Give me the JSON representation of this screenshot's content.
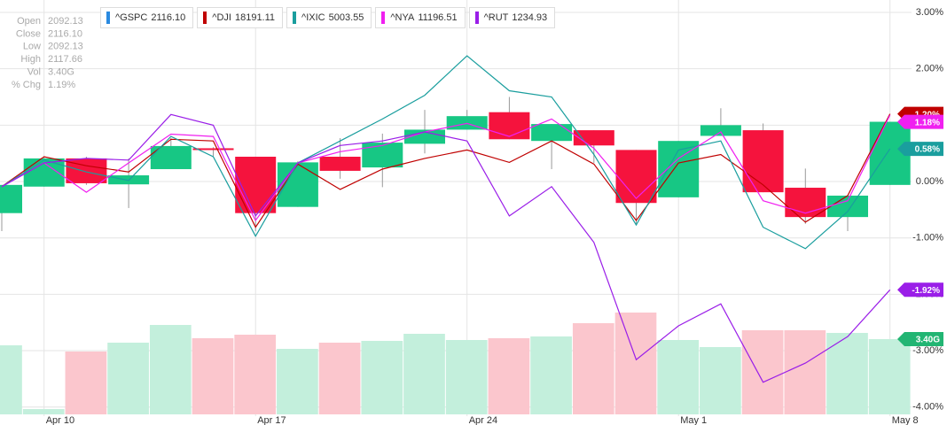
{
  "chart_data": {
    "type": "candlestick",
    "categories": [
      null,
      "Apr 10",
      null,
      null,
      null,
      null,
      "Apr 17",
      null,
      null,
      null,
      null,
      "Apr 24",
      null,
      null,
      null,
      null,
      "May 1",
      null,
      null,
      null,
      null,
      "May 8"
    ],
    "ylim": [
      -4.13,
      3.22
    ],
    "yticks": [
      {
        "value": 3,
        "label": "3.00%"
      },
      {
        "value": 2,
        "label": "2.00%"
      },
      {
        "value": 1,
        "label": "1.00%"
      },
      {
        "value": 0,
        "label": "0.00%"
      },
      {
        "value": -1,
        "label": "-1.00%"
      },
      {
        "value": -2,
        "label": "-2.00%"
      },
      {
        "value": -3,
        "label": "-3.00%"
      },
      {
        "value": -4,
        "label": "-4.00%"
      }
    ],
    "grid": true,
    "series": [
      {
        "name": "^GSPC",
        "legend_value": "2116.10",
        "color": "#2a8ae0",
        "up_color": "#17c784",
        "down_color": "#f5133d",
        "open": [
          -0.56,
          -0.09,
          0.41,
          -0.05,
          0.22,
          0.59,
          0.44,
          -0.45,
          0.44,
          0.25,
          0.67,
          0.92,
          1.23,
          0.72,
          0.91,
          0.56,
          -0.28,
          0.81,
          0.91,
          -0.11,
          -0.63,
          -0.06
        ],
        "high": [
          -0.06,
          0.44,
          0.44,
          0.41,
          0.77,
          0.61,
          0.44,
          0.36,
          0.77,
          0.85,
          1.27,
          1.27,
          1.5,
          1.02,
          0.91,
          0.56,
          0.72,
          1.3,
          1.03,
          0.23,
          -0.25,
          1.06
        ],
        "low": [
          -0.88,
          -0.09,
          -0.06,
          -0.47,
          0.22,
          0.45,
          -0.88,
          -0.45,
          0.05,
          -0.1,
          0.5,
          0.92,
          0.75,
          0.22,
          0.33,
          -0.75,
          -0.28,
          0.81,
          -0.19,
          -0.75,
          -0.88,
          -0.06
        ],
        "close": [
          -0.06,
          0.41,
          -0.03,
          0.11,
          0.63,
          0.56,
          -0.56,
          0.34,
          0.19,
          0.69,
          0.92,
          1.16,
          0.75,
          1.02,
          0.64,
          -0.38,
          0.72,
          1.0,
          -0.19,
          -0.63,
          -0.25,
          1.06
        ]
      },
      {
        "name": "^DJI",
        "legend_value": "18191.11",
        "color": "#c00000",
        "values": [
          -0.09,
          0.44,
          0.28,
          0.17,
          0.75,
          0.72,
          -0.81,
          0.31,
          -0.14,
          0.22,
          0.41,
          0.56,
          0.34,
          0.72,
          0.31,
          -0.69,
          0.33,
          0.48,
          -0.06,
          -0.72,
          -0.25,
          1.2
        ],
        "last_label": "1.20%"
      },
      {
        "name": "^IXIC",
        "legend_value": "5003.55",
        "color": "#1a9e9e",
        "values": [
          -0.09,
          0.38,
          0.17,
          0.02,
          0.8,
          0.44,
          -0.97,
          0.33,
          0.72,
          1.11,
          1.53,
          2.23,
          1.61,
          1.5,
          0.48,
          -0.77,
          0.56,
          0.72,
          -0.81,
          -1.19,
          -0.53,
          0.58
        ],
        "last_label": "0.58%"
      },
      {
        "name": "^NYA",
        "legend_value": "11196.51",
        "color": "#f020f0",
        "values": [
          -0.09,
          0.33,
          -0.19,
          0.33,
          0.84,
          0.8,
          -0.69,
          0.33,
          0.53,
          0.64,
          0.88,
          1.03,
          0.8,
          1.11,
          0.59,
          -0.3,
          0.41,
          0.88,
          -0.34,
          -0.56,
          -0.34,
          1.18
        ],
        "last_label": "1.18%"
      },
      {
        "name": "^RUT",
        "legend_value": "1234.93",
        "color": "#9a1ee8",
        "values": [
          -0.09,
          0.33,
          0.41,
          0.38,
          1.19,
          1.0,
          -0.61,
          0.33,
          0.64,
          0.72,
          0.88,
          0.72,
          -0.61,
          -0.09,
          -1.08,
          -3.16,
          -2.56,
          -2.17,
          -3.56,
          -3.22,
          -2.75,
          -1.92
        ],
        "last_label": "-1.92%"
      }
    ],
    "volume": {
      "values": [
        3.12,
        0.24,
        2.84,
        3.24,
        4.04,
        3.44,
        3.6,
        2.96,
        3.24,
        3.32,
        3.64,
        3.36,
        3.44,
        3.52,
        4.12,
        4.6,
        3.36,
        3.04,
        3.8,
        3.8,
        3.68,
        3.4
      ],
      "ylim": [
        0,
        18.72
      ],
      "up_color": "#c3efdc",
      "down_color": "#fbc6cd",
      "badge_color": "#22b573",
      "last_label": "3.40G"
    },
    "info_panel": {
      "rows": [
        [
          "Open",
          "2092.13"
        ],
        [
          "Close",
          "2116.10"
        ],
        [
          "Low",
          "2092.13"
        ],
        [
          "High",
          "2117.66"
        ],
        [
          "Vol",
          "3.40G"
        ],
        [
          "% Chg",
          "1.19%"
        ]
      ]
    }
  }
}
